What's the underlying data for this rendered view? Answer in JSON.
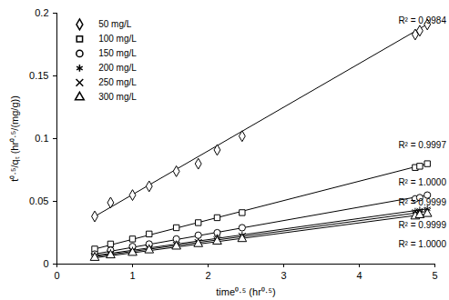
{
  "chart_data": {
    "type": "scatter",
    "x_label": "time⁰·⁵ (hr⁰·⁵)",
    "y_label": "t⁰·⁵/qₜ (hr⁰·⁵/(mg/g))",
    "xlim": [
      0,
      5
    ],
    "xticks": [
      0,
      1,
      2,
      3,
      4,
      5
    ],
    "ylim": [
      0,
      0.2
    ],
    "yticks": [
      0,
      0.05,
      0.1,
      0.15,
      0.2
    ],
    "grid": false,
    "legend": "top-left",
    "color": "#000000",
    "x": [
      0.5,
      0.71,
      1.0,
      1.22,
      1.58,
      1.87,
      2.12,
      2.45,
      4.74,
      4.8,
      4.9
    ],
    "series": [
      {
        "name": "50 mg/L",
        "marker": "diamond",
        "values": [
          0.038,
          0.049,
          0.055,
          0.062,
          0.074,
          0.08,
          0.091,
          0.102,
          0.183,
          0.186,
          0.191
        ],
        "trendline": {
          "x": [
            0.5,
            4.9
          ],
          "values": [
            0.038,
            0.1912
          ]
        }
      },
      {
        "name": "100 mg/L",
        "marker": "square",
        "values": [
          0.012,
          0.016,
          0.02,
          0.024,
          0.029,
          0.033,
          0.037,
          0.041,
          0.077,
          0.078,
          0.08
        ],
        "trendline": {
          "x": [
            0.5,
            4.9
          ],
          "values": [
            0.012,
            0.08
          ]
        }
      },
      {
        "name": "150 mg/L",
        "marker": "circle",
        "values": [
          0.008,
          0.011,
          0.014,
          0.016,
          0.02,
          0.023,
          0.025,
          0.029,
          0.052,
          0.053,
          0.055
        ],
        "trendline": {
          "x": [
            0.5,
            4.9
          ],
          "values": [
            0.008,
            0.055
          ]
        }
      },
      {
        "name": "200 mg/L",
        "marker": "asterisk",
        "values": [
          0.007,
          0.009,
          0.011,
          0.013,
          0.016,
          0.018,
          0.021,
          0.023,
          0.042,
          0.043,
          0.044
        ],
        "trendline": {
          "x": [
            0.5,
            4.9
          ],
          "values": [
            0.0068,
            0.044
          ]
        }
      },
      {
        "name": "250 mg/L",
        "marker": "times",
        "values": [
          0.006,
          0.008,
          0.01,
          0.012,
          0.015,
          0.017,
          0.019,
          0.022,
          0.04,
          0.041,
          0.042
        ],
        "trendline": {
          "x": [
            0.5,
            4.9
          ],
          "values": [
            0.006,
            0.042
          ]
        }
      },
      {
        "name": "300 mg/L",
        "marker": "triangle",
        "values": [
          0.005,
          0.007,
          0.009,
          0.011,
          0.014,
          0.016,
          0.018,
          0.02,
          0.038,
          0.039,
          0.04
        ],
        "trendline": {
          "x": [
            0.5,
            4.9
          ],
          "values": [
            0.005,
            0.04
          ]
        }
      }
    ],
    "annotations": [
      {
        "text": "R² = 0.9984",
        "x": 5.15,
        "y": 0.194
      },
      {
        "text": "R² = 0.9997",
        "x": 5.15,
        "y": 0.095
      },
      {
        "text": "R² = 1.0000",
        "x": 5.15,
        "y": 0.065
      },
      {
        "text": "R² = 0.9999",
        "x": 5.15,
        "y": 0.049
      },
      {
        "text": "R² = 0.9999",
        "x": 5.15,
        "y": 0.031
      },
      {
        "text": "R² = 1.0000",
        "x": 5.15,
        "y": 0.016
      }
    ]
  }
}
